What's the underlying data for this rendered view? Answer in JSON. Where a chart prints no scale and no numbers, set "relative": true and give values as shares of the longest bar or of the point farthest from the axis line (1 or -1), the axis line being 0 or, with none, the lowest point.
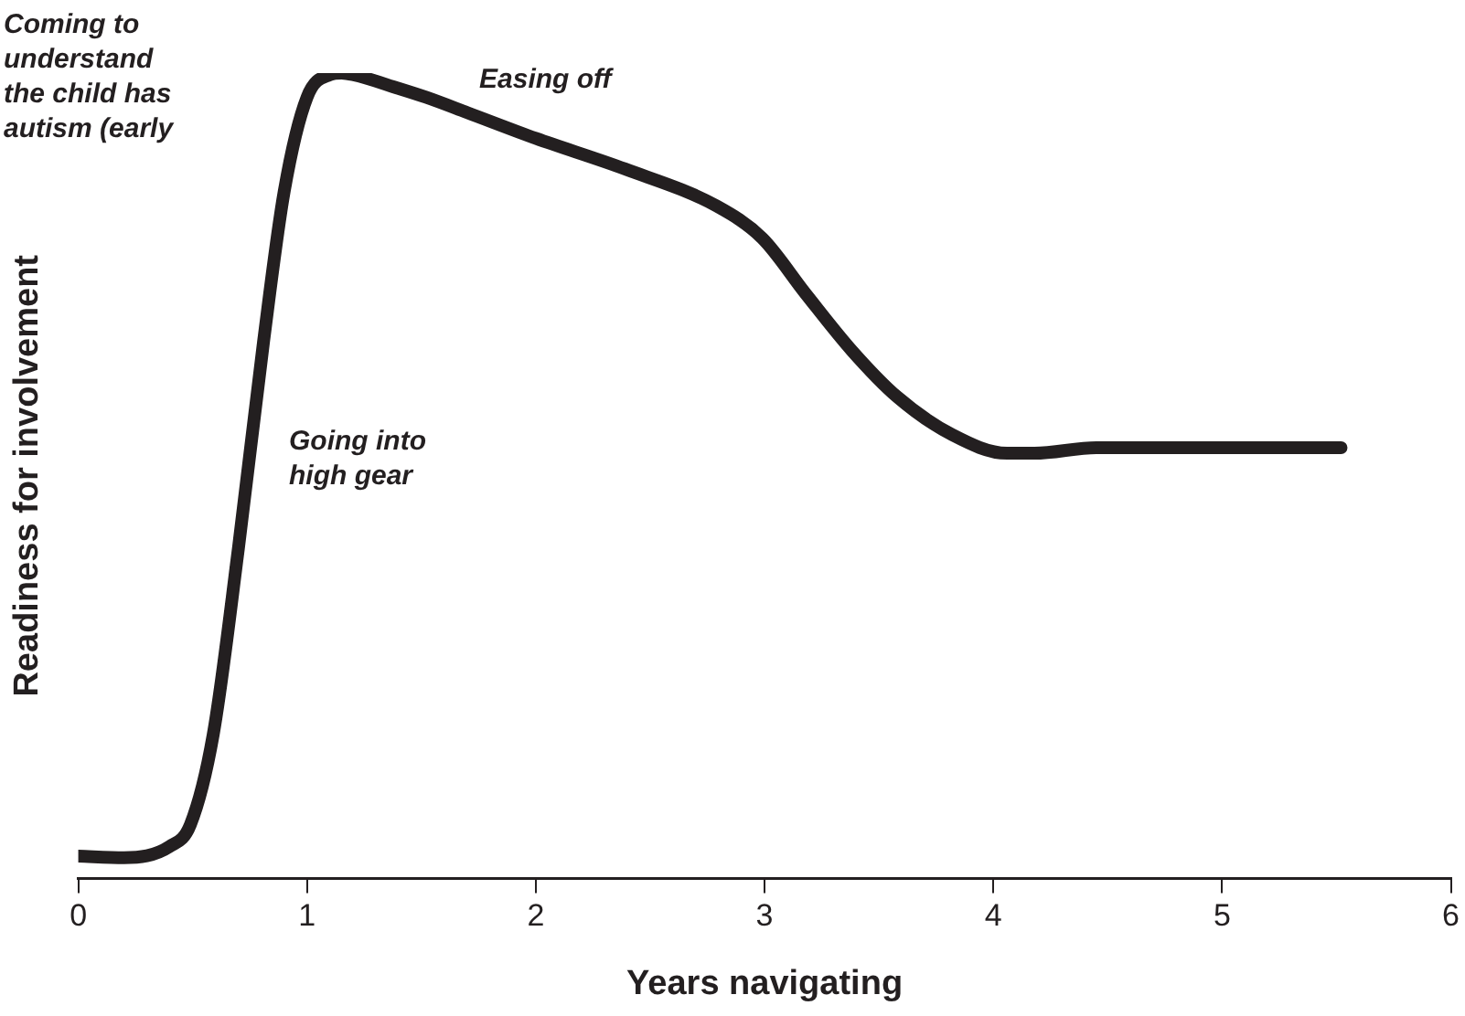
{
  "chart_data": {
    "type": "line",
    "relative": true,
    "xlabel": "Years navigating",
    "ylabel": "Readiness for involvement",
    "xlim": [
      0,
      6
    ],
    "xticks": [
      0,
      1,
      2,
      3,
      4,
      5,
      6
    ],
    "grid": false,
    "legend": false,
    "marker": "none",
    "line_style": "solid",
    "series": [
      {
        "color": "#231f20",
        "x": [
          0,
          0.2,
          0.4,
          0.49,
          0.59,
          0.7,
          0.81,
          0.9,
          1.0,
          1.1,
          1.15,
          1.2,
          1.4,
          1.52,
          1.7,
          2.0,
          2.39,
          2.79,
          2.99,
          3.18,
          3.38,
          3.58,
          3.82,
          4.06,
          4.18,
          4.45,
          4.85,
          5.52
        ],
        "values": [
          0.028,
          0.026,
          0.04,
          0.067,
          0.179,
          0.41,
          0.667,
          0.853,
          0.97,
          0.998,
          1,
          0.998,
          0.981,
          0.97,
          0.951,
          0.919,
          0.881,
          0.835,
          0.795,
          0.726,
          0.656,
          0.598,
          0.551,
          0.528,
          0.528,
          0.535,
          0.535,
          0.535
        ]
      }
    ],
    "annotations": [
      "Coming to understand the child has autism (early",
      "Easing off",
      "Going into high gear"
    ]
  }
}
